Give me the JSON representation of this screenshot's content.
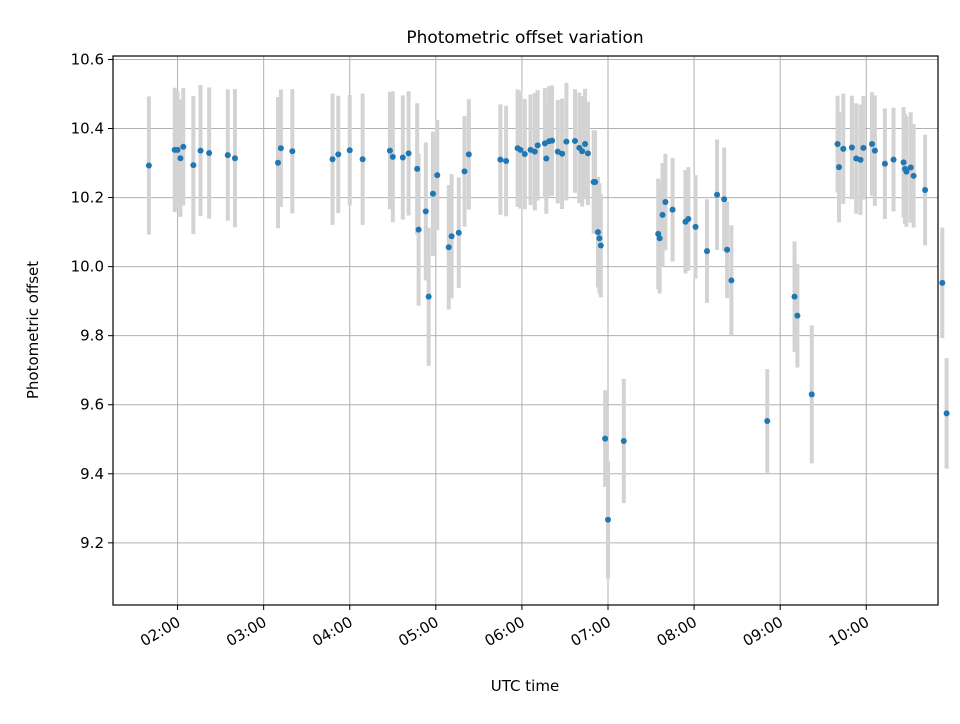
{
  "chart_data": {
    "type": "scatter",
    "title": "Photometric offset variation",
    "xlabel": "UTC time",
    "ylabel": "Photometric offset",
    "x_unit": "hours UTC",
    "xlim": [
      "01:15",
      "10:50"
    ],
    "ylim": [
      9.02,
      10.61
    ],
    "x_ticks": [
      "02:00",
      "03:00",
      "04:00",
      "05:00",
      "06:00",
      "07:00",
      "08:00",
      "09:00",
      "10:00"
    ],
    "y_ticks": [
      "9.2",
      "9.4",
      "9.6",
      "9.8",
      "10.0",
      "10.2",
      "10.4",
      "10.6"
    ],
    "grid": true,
    "colors": {
      "points": "#1f77b4",
      "errorbars": "#d3d3d3",
      "grid": "#b0b0b0"
    },
    "series": [
      {
        "columns": [
          "x",
          "y",
          "err"
        ],
        "points": [
          [
            "01:40",
            10.293,
            0.2
          ],
          [
            "01:58",
            10.338,
            0.18
          ],
          [
            "02:00",
            10.338,
            0.17
          ],
          [
            "02:02",
            10.314,
            0.17
          ],
          [
            "02:04",
            10.347,
            0.17
          ],
          [
            "02:11",
            10.294,
            0.2
          ],
          [
            "02:16",
            10.336,
            0.19
          ],
          [
            "02:22",
            10.329,
            0.19
          ],
          [
            "02:35",
            10.323,
            0.19
          ],
          [
            "02:40",
            10.314,
            0.2
          ],
          [
            "03:10",
            10.301,
            0.19
          ],
          [
            "03:12",
            10.343,
            0.17
          ],
          [
            "03:20",
            10.334,
            0.18
          ],
          [
            "03:48",
            10.311,
            0.19
          ],
          [
            "03:52",
            10.325,
            0.17
          ],
          [
            "04:00",
            10.337,
            0.16
          ],
          [
            "04:09",
            10.311,
            0.19
          ],
          [
            "04:28",
            10.336,
            0.17
          ],
          [
            "04:30",
            10.318,
            0.19
          ],
          [
            "04:37",
            10.316,
            0.18
          ],
          [
            "04:41",
            10.328,
            0.18
          ],
          [
            "04:47",
            10.283,
            0.19
          ],
          [
            "04:48",
            10.107,
            0.22
          ],
          [
            "04:53",
            10.16,
            0.2
          ],
          [
            "04:55",
            9.913,
            0.2
          ],
          [
            "04:58",
            10.211,
            0.18
          ],
          [
            "05:01",
            10.265,
            0.16
          ],
          [
            "05:09",
            10.056,
            0.18
          ],
          [
            "05:11",
            10.088,
            0.18
          ],
          [
            "05:16",
            10.098,
            0.16
          ],
          [
            "05:20",
            10.276,
            0.16
          ],
          [
            "05:23",
            10.325,
            0.16
          ],
          [
            "05:45",
            10.31,
            0.16
          ],
          [
            "05:49",
            10.306,
            0.16
          ],
          [
            "05:57",
            10.343,
            0.17
          ],
          [
            "05:59",
            10.338,
            0.17
          ],
          [
            "06:02",
            10.326,
            0.16
          ],
          [
            "06:06",
            10.338,
            0.16
          ],
          [
            "06:09",
            10.333,
            0.17
          ],
          [
            "06:11",
            10.351,
            0.16
          ],
          [
            "06:16",
            10.357,
            0.16
          ],
          [
            "06:17",
            10.313,
            0.16
          ],
          [
            "06:19",
            10.363,
            0.16
          ],
          [
            "06:21",
            10.365,
            0.16
          ],
          [
            "06:25",
            10.333,
            0.15
          ],
          [
            "06:28",
            10.327,
            0.16
          ],
          [
            "06:31",
            10.362,
            0.17
          ],
          [
            "06:37",
            10.364,
            0.15
          ],
          [
            "06:40",
            10.344,
            0.16
          ],
          [
            "06:42",
            10.334,
            0.16
          ],
          [
            "06:44",
            10.355,
            0.16
          ],
          [
            "06:46",
            10.328,
            0.15
          ],
          [
            "06:50",
            10.245,
            0.15
          ],
          [
            "06:51",
            10.245,
            0.15
          ],
          [
            "06:53",
            10.1,
            0.16
          ],
          [
            "06:54",
            10.082,
            0.16
          ],
          [
            "06:55",
            10.061,
            0.15
          ],
          [
            "06:58",
            9.502,
            0.14
          ],
          [
            "07:00",
            9.267,
            0.17
          ],
          [
            "07:11",
            9.495,
            0.18
          ],
          [
            "07:35",
            10.095,
            0.16
          ],
          [
            "07:36",
            10.082,
            0.16
          ],
          [
            "07:38",
            10.15,
            0.15
          ],
          [
            "07:40",
            10.187,
            0.14
          ],
          [
            "07:45",
            10.165,
            0.15
          ],
          [
            "07:54",
            10.13,
            0.15
          ],
          [
            "07:56",
            10.138,
            0.15
          ],
          [
            "08:01",
            10.115,
            0.15
          ],
          [
            "08:09",
            10.045,
            0.15
          ],
          [
            "08:16",
            10.208,
            0.16
          ],
          [
            "08:21",
            10.195,
            0.15
          ],
          [
            "08:23",
            10.049,
            0.14
          ],
          [
            "08:26",
            9.96,
            0.16
          ],
          [
            "08:51",
            9.553,
            0.15
          ],
          [
            "09:10",
            9.913,
            0.16
          ],
          [
            "09:12",
            9.858,
            0.15
          ],
          [
            "09:22",
            9.63,
            0.2
          ],
          [
            "09:40",
            10.355,
            0.14
          ],
          [
            "09:41",
            10.288,
            0.16
          ],
          [
            "09:44",
            10.341,
            0.16
          ],
          [
            "09:50",
            10.345,
            0.15
          ],
          [
            "09:53",
            10.313,
            0.16
          ],
          [
            "09:56",
            10.309,
            0.16
          ],
          [
            "09:58",
            10.344,
            0.15
          ],
          [
            "10:04",
            10.355,
            0.15
          ],
          [
            "10:06",
            10.336,
            0.16
          ],
          [
            "10:13",
            10.298,
            0.16
          ],
          [
            "10:19",
            10.31,
            0.15
          ],
          [
            "10:26",
            10.302,
            0.16
          ],
          [
            "10:27",
            10.283,
            0.16
          ],
          [
            "10:28",
            10.275,
            0.16
          ],
          [
            "10:31",
            10.287,
            0.16
          ],
          [
            "10:33",
            10.263,
            0.15
          ],
          [
            "10:41",
            10.222,
            0.16
          ],
          [
            "10:53",
            9.953,
            0.16
          ],
          [
            "10:56",
            9.575,
            0.16
          ]
        ]
      }
    ]
  }
}
